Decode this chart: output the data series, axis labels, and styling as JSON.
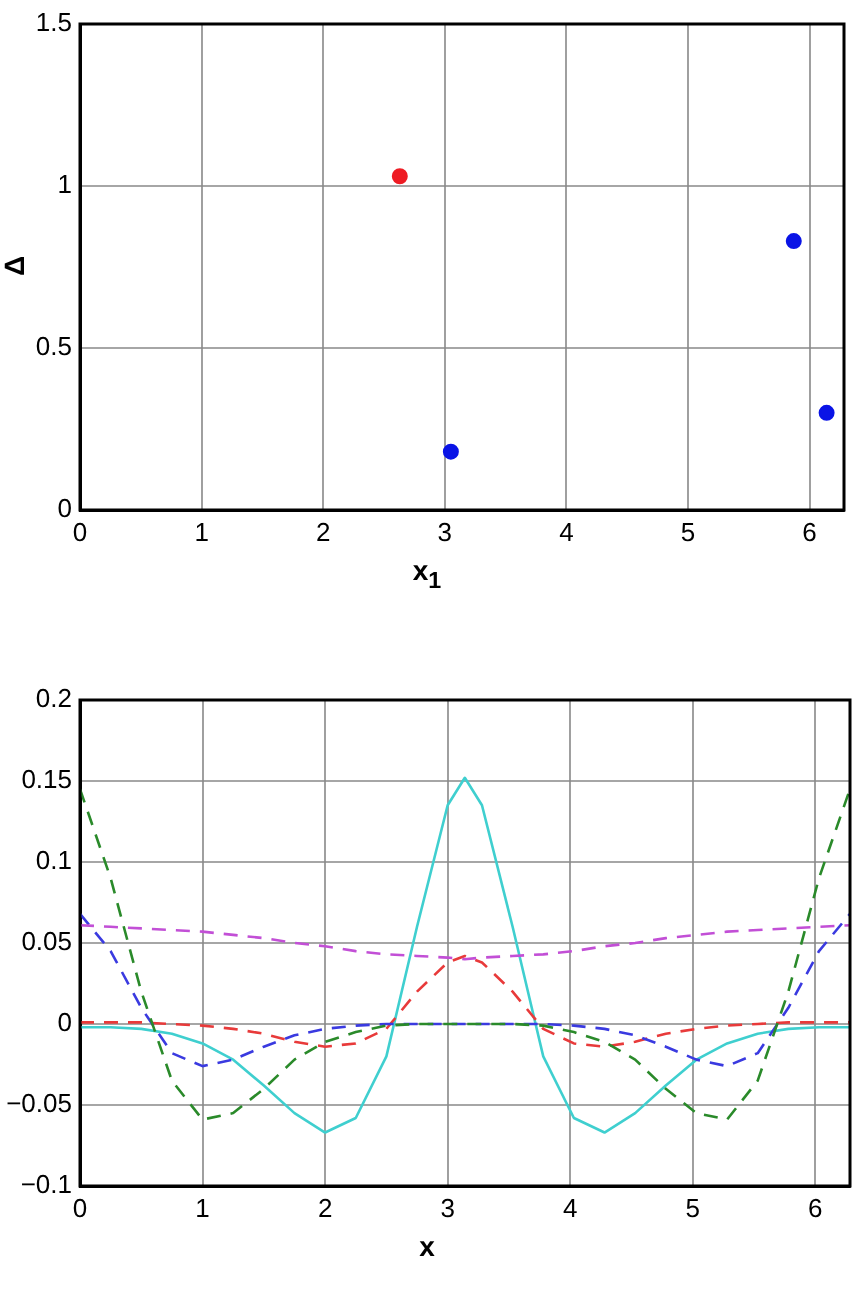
{
  "chart_data": [
    {
      "type": "scatter",
      "xlabel": "x$_{1}$",
      "ylabel": "Δ",
      "x": [
        2.63,
        3.05,
        5.87,
        6.14
      ],
      "values": [
        1.03,
        0.18,
        0.83,
        0.3
      ],
      "colors": [
        "#ee1c24",
        "#0a14e6",
        "#0a14e6",
        "#0a14e6"
      ],
      "marker": "circle",
      "xlim": [
        0,
        6.283
      ],
      "xticks": [
        0,
        1,
        2,
        3,
        4,
        5,
        6
      ],
      "ylim": [
        0,
        1.5
      ],
      "yticks": [
        0,
        0.5,
        1,
        1.5
      ],
      "grid": true,
      "legend": false
    },
    {
      "type": "line",
      "xlabel": "x",
      "xlim": [
        0,
        6.283
      ],
      "xticks": [
        0,
        1,
        2,
        3,
        4,
        5,
        6
      ],
      "ylim": [
        -0.1,
        0.2
      ],
      "yticks": [
        -0.1,
        -0.05,
        0,
        0.05,
        0.1,
        0.15,
        0.2
      ],
      "grid": true,
      "legend": false,
      "x": [
        0,
        0.25,
        0.5,
        0.75,
        1,
        1.25,
        1.5,
        1.75,
        2,
        2.25,
        2.5,
        2.75,
        3,
        3.14,
        3.28,
        3.53,
        3.78,
        4.03,
        4.28,
        4.53,
        4.78,
        5.03,
        5.28,
        5.53,
        5.78,
        6.03,
        6.283
      ],
      "series": [
        {
          "color": "#c24fd6",
          "line_style": "dashed",
          "values": [
            0.061,
            0.06,
            0.059,
            0.058,
            0.057,
            0.055,
            0.053,
            0.05,
            0.048,
            0.045,
            0.043,
            0.042,
            0.041,
            0.04,
            0.041,
            0.042,
            0.043,
            0.045,
            0.048,
            0.05,
            0.053,
            0.055,
            0.057,
            0.058,
            0.059,
            0.06,
            0.061
          ]
        },
        {
          "color": "#2a8a2a",
          "line_style": "dashed",
          "values": [
            0.145,
            0.09,
            0.02,
            -0.035,
            -0.059,
            -0.055,
            -0.04,
            -0.022,
            -0.011,
            -0.005,
            -0.001,
            0,
            0,
            0,
            0,
            0,
            -0.001,
            -0.005,
            -0.011,
            -0.022,
            -0.04,
            -0.055,
            -0.059,
            -0.035,
            0.02,
            0.09,
            0.145
          ]
        },
        {
          "color": "#3a3ae0",
          "line_style": "dashed",
          "values": [
            0.068,
            0.045,
            0.01,
            -0.018,
            -0.026,
            -0.022,
            -0.014,
            -0.007,
            -0.003,
            -0.001,
            0,
            0,
            0,
            0,
            0,
            0,
            0,
            -0.001,
            -0.003,
            -0.007,
            -0.014,
            -0.022,
            -0.026,
            -0.018,
            0.01,
            0.045,
            0.068
          ]
        },
        {
          "color": "#e83a3a",
          "line_style": "dashed",
          "values": [
            0.001,
            0.001,
            0.001,
            0,
            -0.001,
            -0.003,
            -0.006,
            -0.011,
            -0.014,
            -0.012,
            -0.003,
            0.02,
            0.038,
            0.042,
            0.038,
            0.02,
            -0.003,
            -0.012,
            -0.014,
            -0.011,
            -0.006,
            -0.003,
            -0.001,
            0,
            0.001,
            0.001,
            0.001
          ]
        },
        {
          "color": "#3fcfcf",
          "line_style": "solid",
          "values": [
            -0.002,
            -0.002,
            -0.003,
            -0.006,
            -0.012,
            -0.022,
            -0.038,
            -0.055,
            -0.067,
            -0.058,
            -0.02,
            0.06,
            0.135,
            0.152,
            0.135,
            0.06,
            -0.02,
            -0.058,
            -0.067,
            -0.055,
            -0.038,
            -0.022,
            -0.012,
            -0.006,
            -0.003,
            -0.002,
            -0.002
          ]
        }
      ]
    }
  ]
}
